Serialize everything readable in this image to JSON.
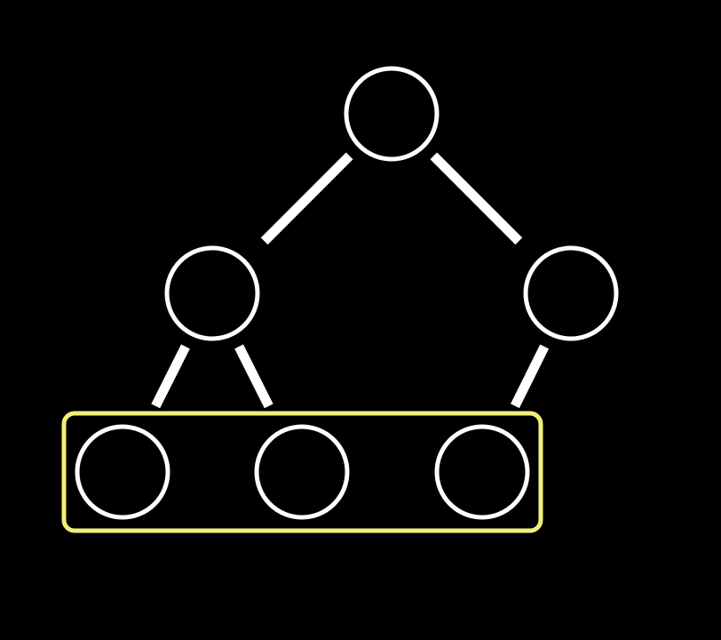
{
  "diagram": {
    "type": "binary-tree",
    "background_color": "#000000",
    "node_stroke_color": "#ffffff",
    "edge_color": "#ffffff",
    "highlight_color": "#f3ef7a",
    "nodes": [
      {
        "id": "root"
      },
      {
        "id": "left-child"
      },
      {
        "id": "right-child"
      },
      {
        "id": "left-left-leaf"
      },
      {
        "id": "left-right-leaf"
      },
      {
        "id": "right-left-leaf"
      }
    ],
    "edges": [
      {
        "from": "root",
        "to": "left-child"
      },
      {
        "from": "root",
        "to": "right-child"
      },
      {
        "from": "left-child",
        "to": "left-left-leaf"
      },
      {
        "from": "left-child",
        "to": "left-right-leaf"
      },
      {
        "from": "right-child",
        "to": "right-left-leaf"
      }
    ],
    "highlighted_level": {
      "nodes": [
        "left-left-leaf",
        "left-right-leaf",
        "right-left-leaf"
      ]
    }
  }
}
